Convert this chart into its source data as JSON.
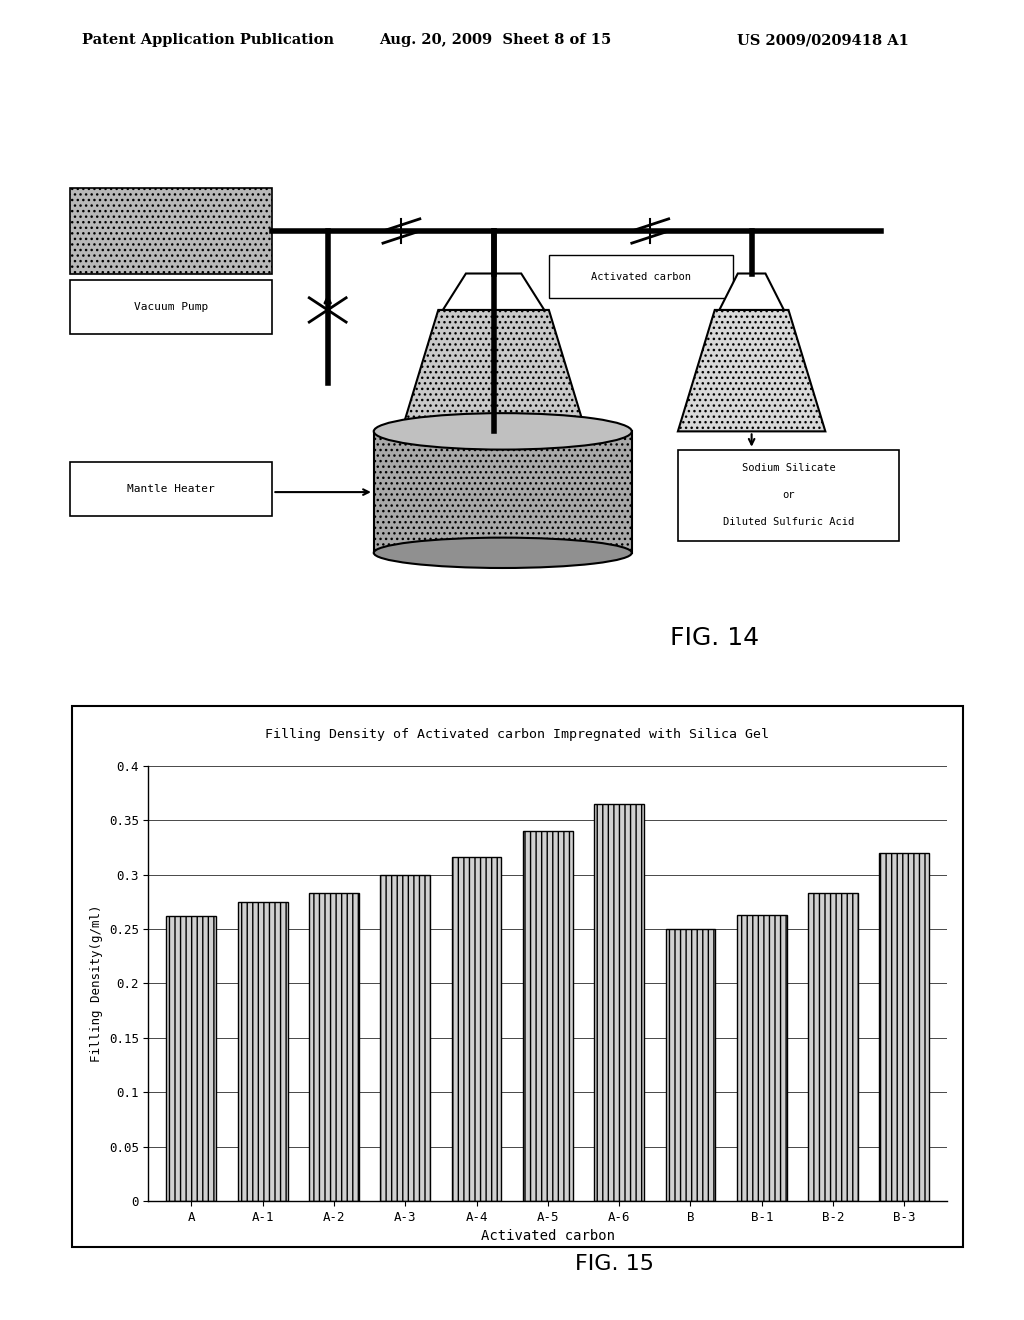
{
  "title": "Filling Density of Activated carbon Impregnated with Silica Gel",
  "xlabel": "Activated carbon",
  "ylabel": "Filling Density(g/ml)",
  "categories": [
    "A",
    "A-1",
    "A-2",
    "A-3",
    "A-4",
    "A-5",
    "A-6",
    "B",
    "B-1",
    "B-2",
    "B-3"
  ],
  "values": [
    0.262,
    0.275,
    0.283,
    0.3,
    0.316,
    0.34,
    0.365,
    0.25,
    0.263,
    0.283,
    0.32
  ],
  "ylim": [
    0,
    0.4
  ],
  "yticks": [
    0,
    0.05,
    0.1,
    0.15,
    0.2,
    0.25,
    0.3,
    0.35,
    0.4
  ],
  "ytick_labels": [
    "0",
    "0.05",
    "0.1",
    "0.15",
    "0.2",
    "0.25",
    "0.3",
    "0.35",
    "0.4"
  ],
  "bar_color": "#c8c8c8",
  "bar_edge_color": "#000000",
  "background_color": "#ffffff",
  "fig15_label": "FIG. 15",
  "fig14_label": "FIG. 14",
  "header_left": "Patent Application Publication",
  "header_mid": "Aug. 20, 2009  Sheet 8 of 15",
  "header_right": "US 2009/0209418 A1"
}
